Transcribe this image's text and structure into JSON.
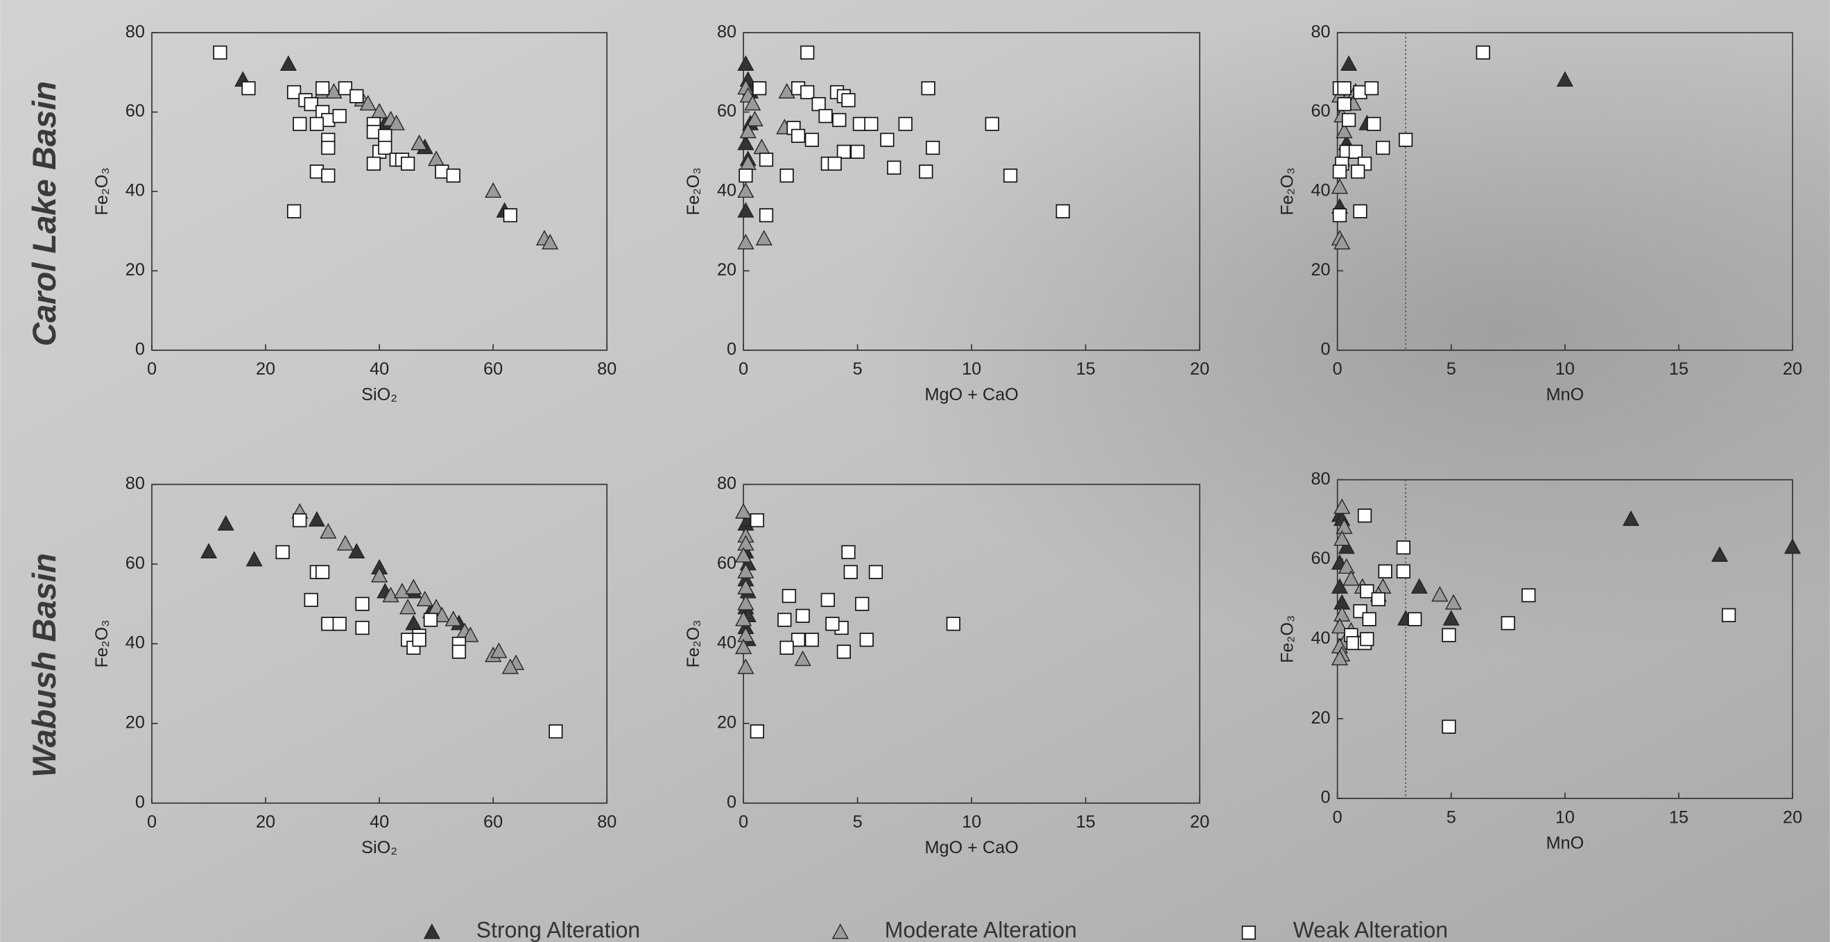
{
  "row_labels": [
    "Carol Lake Basin",
    "Wabush Basin"
  ],
  "chart_data": [
    {
      "type": "scatter",
      "x_label": "SiO₂",
      "y_label": "Fe₂O₃",
      "xlim": [
        0,
        80
      ],
      "ylim": [
        0,
        80
      ],
      "xticks": [
        0,
        20,
        40,
        60,
        80
      ],
      "yticks": [
        0,
        20,
        40,
        60,
        80
      ],
      "series": [
        {
          "name": "Strong Alteration",
          "marker": "triangle",
          "color": "#333333",
          "x": [
            24,
            16,
            41,
            47,
            48,
            62
          ],
          "values": [
            72,
            68,
            57,
            52,
            51,
            35
          ]
        },
        {
          "name": "Moderate Alteration",
          "marker": "triangle",
          "color": "#9a9a9a",
          "x": [
            30,
            32,
            37,
            38,
            40,
            42,
            43,
            47,
            50,
            60,
            69,
            70
          ],
          "values": [
            65,
            65,
            63,
            62,
            60,
            58,
            57,
            52,
            48,
            40,
            28,
            27
          ]
        },
        {
          "name": "Weak Alteration",
          "marker": "square",
          "color": "#ffffff",
          "x": [
            12,
            17,
            25,
            27,
            28,
            30,
            34,
            36,
            30,
            31,
            33,
            29,
            39,
            39,
            41,
            31,
            31,
            40,
            41,
            39,
            43,
            44,
            45,
            51,
            53,
            29,
            31,
            25,
            63,
            26
          ],
          "values": [
            75,
            66,
            65,
            63,
            62,
            66,
            66,
            64,
            60,
            58,
            59,
            57,
            57,
            55,
            54,
            53,
            51,
            50,
            51,
            47,
            48,
            48,
            47,
            45,
            44,
            45,
            44,
            35,
            34,
            57
          ]
        }
      ]
    },
    {
      "type": "scatter",
      "x_label": "MgO + CaO",
      "y_label": "Fe₂O₃",
      "xlim": [
        0,
        20
      ],
      "ylim": [
        0,
        80
      ],
      "xticks": [
        0,
        5,
        10,
        15,
        20
      ],
      "yticks": [
        0,
        20,
        40,
        60,
        80
      ],
      "series": [
        {
          "name": "Strong Alteration",
          "marker": "triangle",
          "color": "#333333",
          "x": [
            0.1,
            0.2,
            0.3,
            0.3,
            0.1,
            0.2,
            0.1
          ],
          "values": [
            72,
            68,
            65,
            57,
            52,
            48,
            35
          ]
        },
        {
          "name": "Moderate Alteration",
          "marker": "triangle",
          "color": "#9a9a9a",
          "x": [
            0.1,
            0.2,
            0.4,
            0.5,
            0.2,
            1.9,
            1.8,
            0.8,
            0.2,
            0.1,
            0.1,
            0.9
          ],
          "values": [
            66,
            64,
            62,
            58,
            55,
            65,
            56,
            51,
            47,
            40,
            27,
            28
          ]
        },
        {
          "name": "Weak Alteration",
          "marker": "square",
          "color": "#ffffff",
          "x": [
            0.7,
            2.8,
            2.4,
            2.8,
            3.3,
            4.1,
            4.4,
            4.6,
            3.6,
            4.2,
            5.1,
            5.6,
            7.1,
            2.2,
            2.4,
            3.0,
            6.3,
            8.1,
            10.9,
            4.4,
            5.0,
            8.3,
            3.7,
            4.0,
            6.6,
            1.9,
            8.0,
            11.7,
            1.0,
            0.1,
            1.0,
            14.0
          ],
          "values": [
            66,
            75,
            66,
            65,
            62,
            65,
            64,
            63,
            59,
            58,
            57,
            57,
            57,
            56,
            54,
            53,
            53,
            66,
            57,
            50,
            50,
            51,
            47,
            47,
            46,
            44,
            45,
            44,
            48,
            44,
            34,
            35
          ]
        }
      ]
    },
    {
      "type": "scatter",
      "x_label": "MnO",
      "y_label": "Fe₂O₃",
      "xlim": [
        0,
        20
      ],
      "ylim": [
        0,
        80
      ],
      "xticks": [
        0,
        5,
        10,
        15,
        20
      ],
      "yticks": [
        0,
        20,
        40,
        60,
        80
      ],
      "vline": 3,
      "series": [
        {
          "name": "Strong Alteration",
          "marker": "triangle",
          "color": "#333333",
          "x": [
            0.5,
            10,
            1.3,
            0.4,
            0.1
          ],
          "values": [
            72,
            68,
            57,
            52,
            36
          ]
        },
        {
          "name": "Moderate Alteration",
          "marker": "triangle",
          "color": "#9a9a9a",
          "x": [
            0.1,
            0.5,
            0.8,
            0.7,
            0.2,
            0.3,
            0.4,
            0.2,
            0.1,
            0.1,
            0.2
          ],
          "values": [
            64,
            64,
            65,
            62,
            59,
            55,
            50,
            48,
            41,
            28,
            27
          ]
        },
        {
          "name": "Weak Alteration",
          "marker": "square",
          "color": "#ffffff",
          "x": [
            0.1,
            0.3,
            1.0,
            1.5,
            6.4,
            0.3,
            0.5,
            1.6,
            3.0,
            2.0,
            0.4,
            0.8,
            1.2,
            0.9,
            0.2,
            0.1,
            0.1,
            1.0
          ],
          "values": [
            66,
            66,
            65,
            66,
            75,
            62,
            58,
            57,
            53,
            51,
            50,
            50,
            47,
            45,
            47,
            45,
            34,
            35
          ]
        }
      ]
    },
    {
      "type": "scatter",
      "x_label": "SiO₂",
      "y_label": "Fe₂O₃",
      "xlim": [
        0,
        80
      ],
      "ylim": [
        0,
        80
      ],
      "xticks": [
        0,
        20,
        40,
        60,
        80
      ],
      "yticks": [
        0,
        20,
        40,
        60,
        80
      ],
      "series": [
        {
          "name": "Strong Alteration",
          "marker": "triangle",
          "color": "#333333",
          "x": [
            10,
            13,
            18,
            29,
            36,
            40,
            41,
            46,
            46,
            49,
            54
          ],
          "values": [
            63,
            70,
            61,
            71,
            63,
            59,
            53,
            53,
            45,
            48,
            45
          ]
        },
        {
          "name": "Moderate Alteration",
          "marker": "triangle",
          "color": "#9a9a9a",
          "x": [
            26,
            31,
            34,
            40,
            42,
            44,
            45,
            46,
            48,
            50,
            51,
            53,
            55,
            56,
            60,
            61,
            64,
            63
          ],
          "values": [
            73,
            68,
            65,
            57,
            52,
            53,
            49,
            54,
            51,
            49,
            47,
            46,
            43,
            42,
            37,
            38,
            35,
            34
          ]
        },
        {
          "name": "Weak Alteration",
          "marker": "square",
          "color": "#ffffff",
          "x": [
            23,
            26,
            29,
            30,
            28,
            31,
            33,
            37,
            37,
            45,
            46,
            47,
            47,
            49,
            54,
            54,
            71
          ],
          "values": [
            63,
            71,
            58,
            58,
            51,
            45,
            45,
            50,
            44,
            41,
            39,
            42,
            41,
            46,
            40,
            38,
            18
          ]
        }
      ]
    },
    {
      "type": "scatter",
      "x_label": "MgO + CaO",
      "y_label": "Fe₂O₃",
      "xlim": [
        0,
        20
      ],
      "ylim": [
        0,
        80
      ],
      "xticks": [
        0,
        5,
        10,
        15,
        20
      ],
      "yticks": [
        0,
        20,
        40,
        60,
        80
      ],
      "series": [
        {
          "name": "Strong Alteration",
          "marker": "triangle",
          "color": "#333333",
          "x": [
            0.1,
            0.2,
            0.1,
            0.2,
            0.1,
            0.2,
            0.1,
            0.2,
            0.1,
            0.2
          ],
          "values": [
            70,
            71,
            63,
            60,
            56,
            53,
            49,
            47,
            44,
            41
          ]
        },
        {
          "name": "Moderate Alteration",
          "marker": "triangle",
          "color": "#9a9a9a",
          "x": [
            0,
            0.1,
            0.1,
            0,
            0.1,
            0.1,
            0.1,
            0,
            0.1,
            0,
            0.1,
            2.6
          ],
          "values": [
            73,
            67,
            65,
            62,
            58,
            54,
            50,
            46,
            42,
            39,
            34,
            36
          ]
        },
        {
          "name": "Weak Alteration",
          "marker": "square",
          "color": "#ffffff",
          "x": [
            0.6,
            2.0,
            4.6,
            4.7,
            5.8,
            3.7,
            2.6,
            1.8,
            4.3,
            3.9,
            5.2,
            2.4,
            3.0,
            1.9,
            5.4,
            4.4,
            9.2,
            0.6
          ],
          "values": [
            71,
            52,
            63,
            58,
            58,
            51,
            47,
            46,
            44,
            45,
            50,
            41,
            41,
            39,
            41,
            38,
            45,
            18
          ]
        }
      ]
    },
    {
      "type": "scatter",
      "x_label": "MnO",
      "y_label": "Fe₂O₃",
      "xlim": [
        0,
        20
      ],
      "ylim": [
        0,
        80
      ],
      "xticks": [
        0,
        5,
        10,
        15,
        20
      ],
      "yticks": [
        0,
        20,
        40,
        60,
        80
      ],
      "vline": 3,
      "series": [
        {
          "name": "Strong Alteration",
          "marker": "triangle",
          "color": "#333333",
          "x": [
            0.1,
            0.2,
            0.4,
            0.1,
            0.1,
            0.2,
            3.0,
            3.6,
            5.0,
            12.9,
            16.8,
            20
          ],
          "values": [
            71,
            70,
            63,
            59,
            53,
            49,
            45,
            53,
            45,
            70,
            61,
            63
          ]
        },
        {
          "name": "Moderate Alteration",
          "marker": "triangle",
          "color": "#9a9a9a",
          "x": [
            0.2,
            0.3,
            0.2,
            0.4,
            0.6,
            1.1,
            2.0,
            1.8,
            4.5,
            5.1,
            0.2,
            0.1,
            0.6,
            0.3,
            0.1,
            0.2,
            0.1
          ],
          "values": [
            73,
            68,
            65,
            58,
            55,
            53,
            53,
            51,
            51,
            49,
            46,
            43,
            42,
            39,
            38,
            36,
            35
          ]
        },
        {
          "name": "Weak Alteration",
          "marker": "square",
          "color": "#ffffff",
          "x": [
            1.2,
            2.9,
            2.1,
            2.9,
            1.3,
            1.8,
            1.0,
            1.4,
            3.4,
            0.6,
            0.7,
            1.2,
            1.3,
            4.9,
            7.5,
            8.4,
            17.2,
            4.9
          ],
          "values": [
            71,
            57,
            57,
            63,
            52,
            50,
            47,
            45,
            45,
            41,
            39,
            39,
            40,
            41,
            44,
            51,
            46,
            18
          ]
        }
      ]
    }
  ]
}
